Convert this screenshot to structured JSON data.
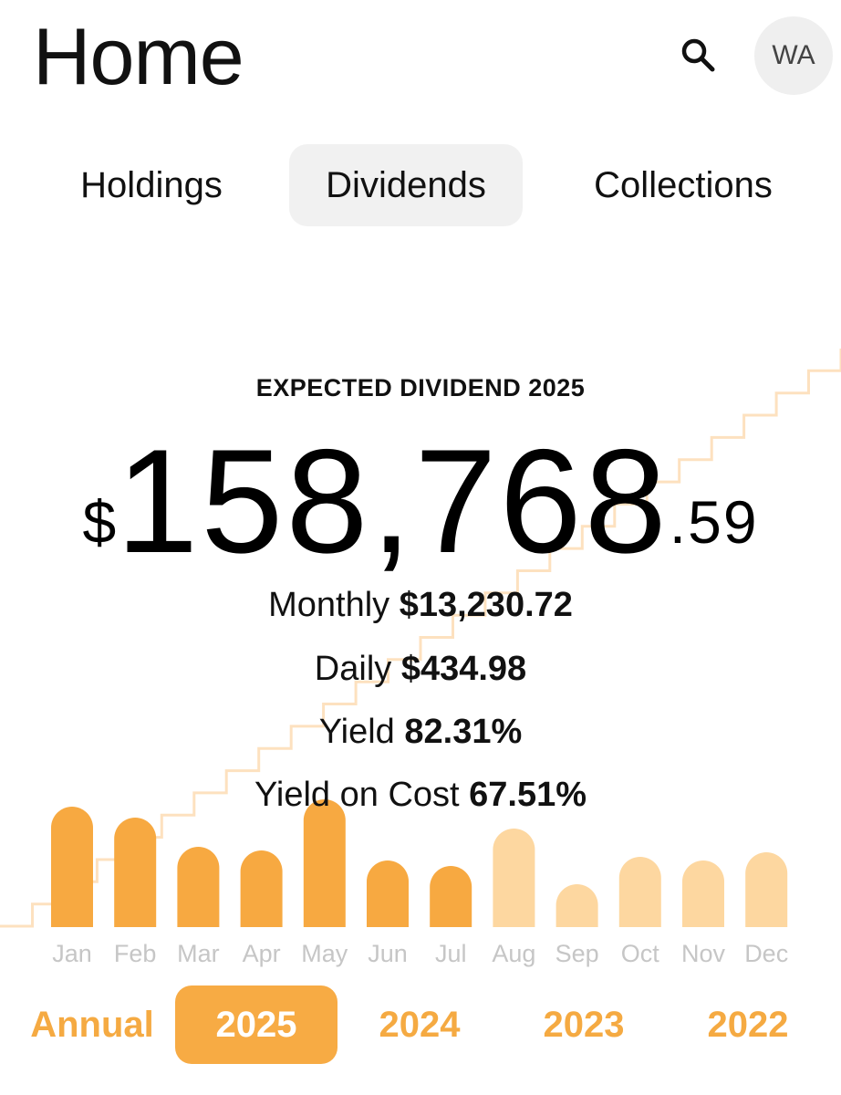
{
  "header": {
    "title": "Home",
    "avatar_initials": "WA",
    "search_icon": "search-icon"
  },
  "tabs": [
    {
      "label": "Holdings",
      "active": false
    },
    {
      "label": "Dividends",
      "active": true
    },
    {
      "label": "Collections",
      "active": false
    }
  ],
  "summary": {
    "heading": "EXPECTED DIVIDEND 2025",
    "currency": "$",
    "amount_main": "158,768",
    "amount_cents": ".59",
    "stats": [
      {
        "label": "Monthly",
        "value": "$13,230.72"
      },
      {
        "label": "Daily",
        "value": "$434.98"
      },
      {
        "label": "Yield",
        "value": "82.31%"
      },
      {
        "label": "Yield on Cost",
        "value": "67.51%"
      }
    ]
  },
  "chart_data": {
    "type": "bar",
    "categories": [
      "Jan",
      "Feb",
      "Mar",
      "Apr",
      "May",
      "Jun",
      "Jul",
      "Aug",
      "Sep",
      "Oct",
      "Nov",
      "Dec"
    ],
    "values": [
      132,
      120,
      88,
      84,
      140,
      73,
      67,
      108,
      47,
      77,
      73,
      82
    ],
    "received_months": 7,
    "title": "",
    "xlabel": "",
    "ylabel": "",
    "grid": false,
    "colors": {
      "received": "#f7a941",
      "expected": "#fdd7a0",
      "label": "#c6c6c6",
      "cumulative_line": "#fde1bf"
    }
  },
  "years": [
    {
      "label": "Annual",
      "active": false
    },
    {
      "label": "2025",
      "active": true
    },
    {
      "label": "2024",
      "active": false
    },
    {
      "label": "2023",
      "active": false
    },
    {
      "label": "2022",
      "active": false
    }
  ],
  "colors": {
    "accent": "#f7ab44",
    "tab_active_bg": "#f1f1f1"
  }
}
